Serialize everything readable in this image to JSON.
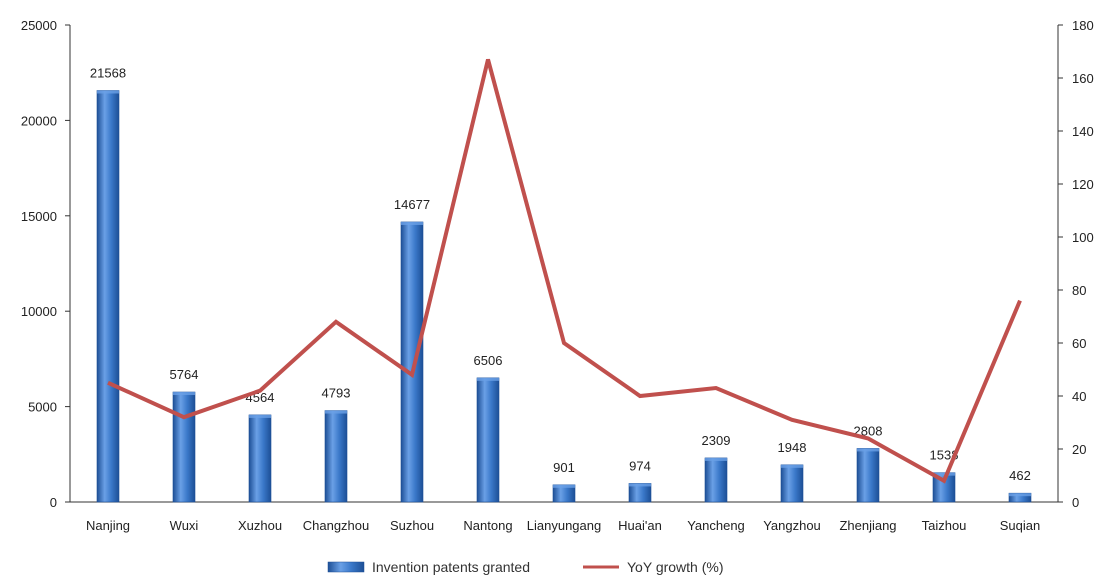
{
  "chart_data": {
    "type": "bar",
    "categories": [
      "Nanjing",
      "Wuxi",
      "Xuzhou",
      "Changzhou",
      "Suzhou",
      "Nantong",
      "Lianyungang",
      "Huai'an",
      "Yancheng",
      "Yangzhou",
      "Zhenjiang",
      "Taizhou",
      "Suqian"
    ],
    "series": [
      {
        "name": "Invention patents granted",
        "type": "bar",
        "axis": "left",
        "values": [
          21568,
          5764,
          4564,
          4793,
          14677,
          6506,
          901,
          974,
          2309,
          1948,
          2808,
          1538,
          462
        ],
        "labels": [
          "21568",
          "5764",
          "4564",
          "4793",
          "14677",
          "6506",
          "901",
          "974",
          "2309",
          "1948",
          "2808",
          "1538",
          "462"
        ]
      },
      {
        "name": "YoY growth (%)",
        "type": "line",
        "axis": "right",
        "values": [
          45,
          32,
          42,
          68,
          48,
          167,
          60,
          40,
          43,
          31,
          24,
          8,
          76
        ]
      }
    ],
    "y_left": {
      "min": 0,
      "max": 25000,
      "ticks": [
        "0",
        "5000",
        "10000",
        "15000",
        "20000",
        "25000"
      ]
    },
    "y_right": {
      "min": 0,
      "max": 180,
      "ticks": [
        "0",
        "20",
        "40",
        "60",
        "80",
        "100",
        "120",
        "140",
        "160",
        "180"
      ]
    },
    "legend_position": "bottom",
    "grid": false,
    "colors": {
      "bar": "#2f6bbd",
      "bar_light": "#6aa0e6",
      "bar_dark": "#1d4f96",
      "line": "#c0504d",
      "axis": "#333333"
    }
  }
}
